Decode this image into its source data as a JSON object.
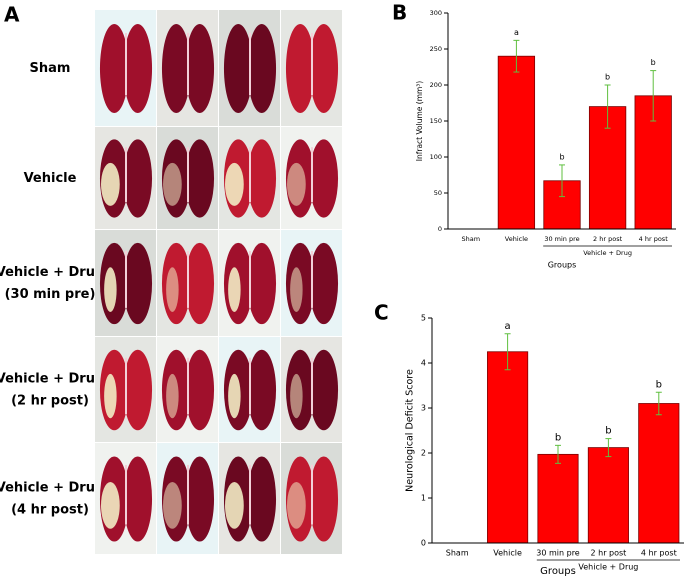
{
  "panel_a": {
    "label": "A",
    "rows": [
      [
        "Sham"
      ],
      [
        "Vehicle"
      ],
      [
        "Vehicle + Drug",
        "(30 min pre)"
      ],
      [
        "Vehicle + Drug",
        "(2 hr post)"
      ],
      [
        "Vehicle + Drug",
        "(4 hr post)"
      ]
    ]
  },
  "chart_data": [
    {
      "type": "bar",
      "panel_label": "B",
      "y_label": "Infract Volume (mm³)",
      "x_label": "Groups",
      "group_label": "Vehicle + Drug",
      "categories": [
        "Sham",
        "Vehicle",
        "30 min pre",
        "2 hr post",
        "4 hr post"
      ],
      "values": [
        0,
        240,
        67,
        170,
        185
      ],
      "errors": [
        0,
        22,
        22,
        30,
        35
      ],
      "annotations": [
        null,
        "a",
        "b",
        "b",
        "b"
      ],
      "color": "#ff0000",
      "error_color": "#5fbf3f",
      "ylim": [
        0,
        300
      ],
      "yticks": [
        0,
        50,
        100,
        150,
        200,
        250,
        300
      ]
    },
    {
      "type": "bar",
      "panel_label": "C",
      "y_label": "Neurological Deficit Score",
      "x_label": "Groups",
      "group_label": "Vehicle + Drug",
      "categories": [
        "Sham",
        "Vehicle",
        "30 min pre",
        "2 hr post",
        "4 hr post"
      ],
      "values": [
        0,
        4.25,
        1.97,
        2.12,
        3.1
      ],
      "errors": [
        0,
        0.4,
        0.2,
        0.2,
        0.25
      ],
      "annotations": [
        null,
        "a",
        "b",
        "b",
        "b"
      ],
      "color": "#ff0000",
      "error_color": "#5fbf3f",
      "ylim": [
        0,
        5
      ],
      "yticks": [
        0,
        1,
        2,
        3,
        4,
        5
      ]
    }
  ]
}
